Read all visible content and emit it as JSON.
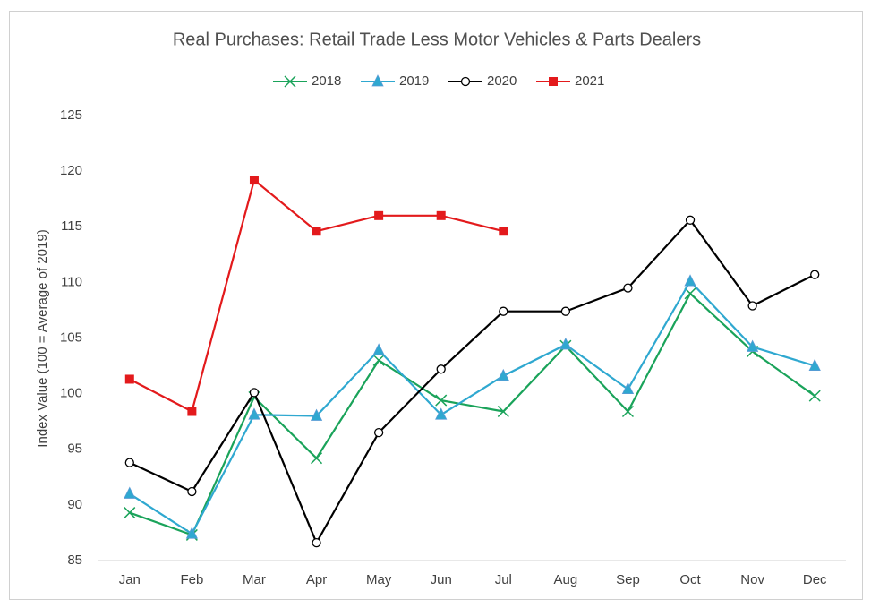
{
  "chart_data": {
    "type": "line",
    "title": "Real Purchases: Retail Trade Less Motor Vehicles & Parts Dealers",
    "y_label": "Index Value (100 = Average of 2019)",
    "categories": [
      "Jan",
      "Feb",
      "Mar",
      "Apr",
      "May",
      "Jun",
      "Jul",
      "Aug",
      "Sep",
      "Oct",
      "Nov",
      "Dec"
    ],
    "ylim": [
      85,
      125
    ],
    "yticks": [
      85,
      90,
      95,
      100,
      105,
      110,
      115,
      120,
      125
    ],
    "grid": false,
    "legend": "top",
    "series": [
      {
        "name": "2018",
        "color": "#1aa35a",
        "marker": "x",
        "values": [
          89.3,
          87.3,
          99.7,
          94.2,
          103.0,
          99.4,
          98.4,
          104.3,
          98.4,
          109.0,
          103.8,
          99.8
        ]
      },
      {
        "name": "2019",
        "color": "#2fa8d0",
        "marker": "triangle",
        "values": [
          91.0,
          87.4,
          98.1,
          98.0,
          103.9,
          98.1,
          101.6,
          104.4,
          100.4,
          110.1,
          104.2,
          102.5
        ]
      },
      {
        "name": "2020",
        "color": "#000000",
        "marker": "circle",
        "values": [
          93.8,
          91.2,
          100.1,
          86.6,
          96.5,
          102.2,
          107.4,
          107.4,
          109.5,
          115.6,
          107.9,
          110.7
        ]
      },
      {
        "name": "2021",
        "color": "#e31a1c",
        "marker": "square",
        "values": [
          101.3,
          98.4,
          119.2,
          114.6,
          116.0,
          116.0,
          114.6,
          null,
          null,
          null,
          null,
          null
        ]
      }
    ]
  }
}
